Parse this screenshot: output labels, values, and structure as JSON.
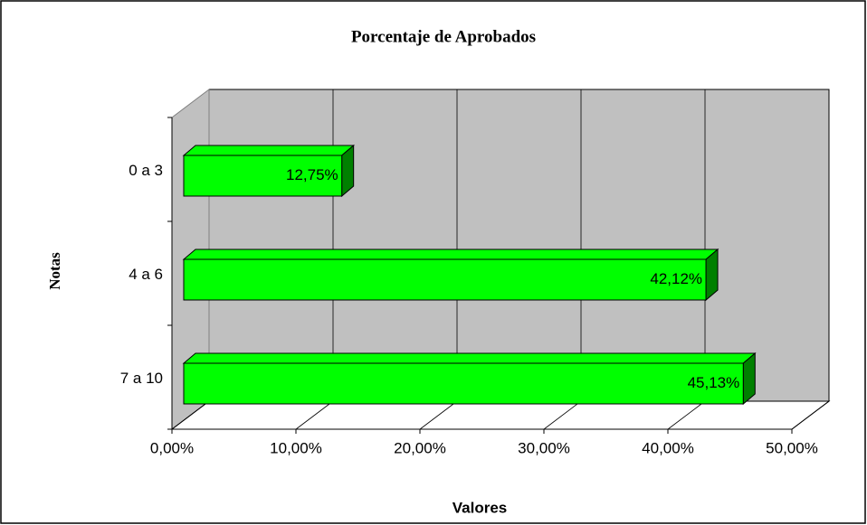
{
  "chart_data": {
    "type": "bar3d_horizontal",
    "title": "Porcentaje de Aprobados",
    "x_label": "Valores",
    "y_label": "Notas",
    "categories": [
      "0 a 3",
      "4 a 6",
      "7 a 10"
    ],
    "values": [
      12.75,
      42.12,
      45.13
    ],
    "value_labels": [
      "12,75%",
      "42,12%",
      "45,13%"
    ],
    "color": "#00ff00",
    "xlim": [
      0,
      50
    ],
    "xticks": [
      {
        "value": 0,
        "label": "0,00%"
      },
      {
        "value": 10,
        "label": "10,00%"
      },
      {
        "value": 20,
        "label": "20,00%"
      },
      {
        "value": 30,
        "label": "30,00%"
      },
      {
        "value": 40,
        "label": "40,00%"
      },
      {
        "value": 50,
        "label": "50,00%"
      }
    ],
    "grid": true
  }
}
